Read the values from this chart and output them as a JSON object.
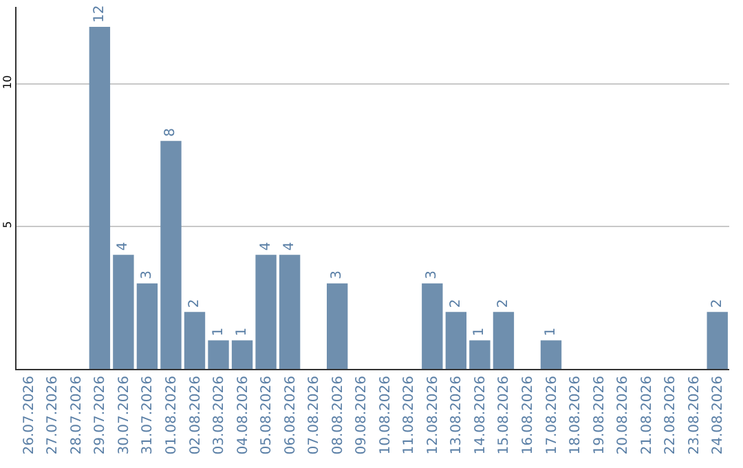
{
  "chart_data": {
    "type": "bar",
    "categories": [
      "26.07.2026",
      "27.07.2026",
      "28.07.2026",
      "29.07.2026",
      "30.07.2026",
      "31.07.2026",
      "01.08.2026",
      "02.08.2026",
      "03.08.2026",
      "04.08.2026",
      "05.08.2026",
      "06.08.2026",
      "07.08.2026",
      "08.08.2026",
      "09.08.2026",
      "10.08.2026",
      "11.08.2026",
      "12.08.2026",
      "13.08.2026",
      "14.08.2026",
      "15.08.2026",
      "16.08.2026",
      "17.08.2026",
      "18.08.2026",
      "19.08.2026",
      "20.08.2026",
      "21.08.2026",
      "22.08.2026",
      "23.08.2026",
      "24.08.2026"
    ],
    "values": [
      null,
      null,
      null,
      12,
      4,
      3,
      8,
      2,
      1,
      1,
      4,
      4,
      null,
      3,
      null,
      null,
      null,
      3,
      2,
      1,
      2,
      null,
      1,
      null,
      null,
      null,
      null,
      null,
      null,
      2
    ],
    "color": "#6f8fae",
    "data_labels": true,
    "ylim": [
      0,
      12.7
    ],
    "yticks": [
      5,
      10
    ],
    "grid": "y"
  }
}
